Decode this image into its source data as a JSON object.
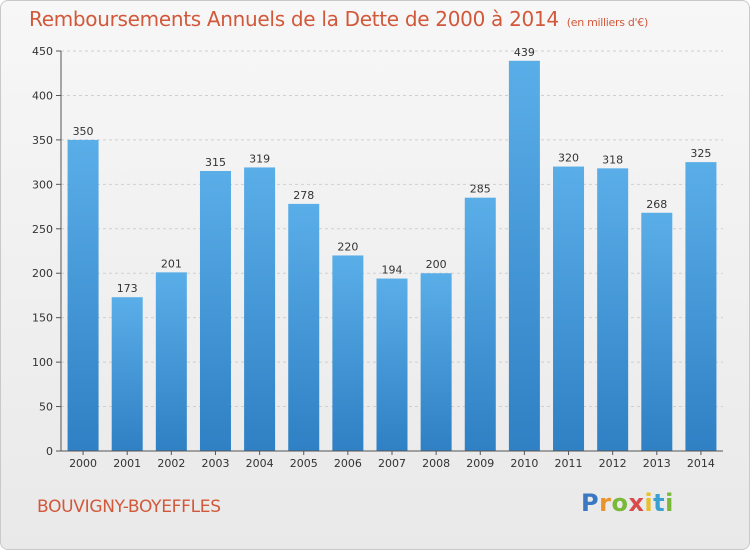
{
  "header": {
    "title": "Remboursements Annuels de la Dette de 2000 à 2014",
    "subtitle": "(en milliers d'€)"
  },
  "footer": {
    "commune": "BOUVIGNY-BOYEFFLES",
    "logo_letters": [
      {
        "char": "P",
        "color": "#3a78c2"
      },
      {
        "char": "r",
        "color": "#e8932c"
      },
      {
        "char": "o",
        "color": "#7ab83a"
      },
      {
        "char": "x",
        "color": "#d94a4a"
      },
      {
        "char": "i",
        "color": "#e8c02c"
      },
      {
        "char": "t",
        "color": "#3aa0d2"
      },
      {
        "char": "i",
        "color": "#7ab83a"
      }
    ]
  },
  "chart_data": {
    "type": "bar",
    "title": "Remboursements Annuels de la Dette de 2000 à 2014",
    "categories": [
      "2000",
      "2001",
      "2002",
      "2003",
      "2004",
      "2005",
      "2006",
      "2007",
      "2008",
      "2009",
      "2010",
      "2011",
      "2012",
      "2013",
      "2014"
    ],
    "values": [
      350,
      173,
      201,
      315,
      319,
      278,
      220,
      194,
      200,
      285,
      439,
      320,
      318,
      268,
      325
    ],
    "ylim": [
      0,
      450
    ],
    "yticks": [
      0,
      50,
      100,
      150,
      200,
      250,
      300,
      350,
      400,
      450
    ],
    "grid": true,
    "bar_color_top": "#5aaee8",
    "bar_color_bottom": "#2f80c4",
    "xlabel": "",
    "ylabel": ""
  }
}
